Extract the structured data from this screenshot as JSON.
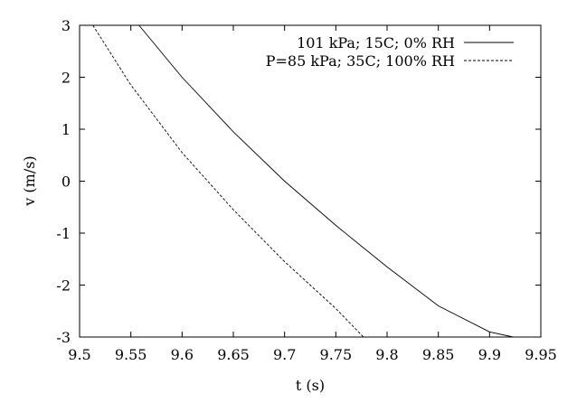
{
  "chart_data": {
    "type": "line",
    "title": "",
    "xlabel": "t (s)",
    "ylabel": "v (m/s)",
    "xlim": [
      9.5,
      9.95
    ],
    "ylim": [
      -3,
      3
    ],
    "xticks": [
      9.5,
      9.55,
      9.6,
      9.65,
      9.7,
      9.75,
      9.8,
      9.85,
      9.9,
      9.95
    ],
    "xtick_labels": [
      "9.5",
      "9.55",
      "9.6",
      "9.65",
      "9.7",
      "9.75",
      "9.8",
      "9.85",
      "9.9",
      "9.95"
    ],
    "yticks": [
      3,
      2,
      1,
      0,
      -1,
      -2,
      -3
    ],
    "ytick_labels": [
      "3",
      "2",
      "1",
      "0",
      "-1",
      "-2",
      "-3"
    ],
    "grid": false,
    "legend_position": "top-right",
    "series": [
      {
        "name": "101 kPa; 15C; 0% RH",
        "style": "solid",
        "color": "#000000",
        "x": [
          9.558,
          9.6,
          9.65,
          9.7,
          9.75,
          9.8,
          9.85,
          9.9,
          9.923
        ],
        "y": [
          3.0,
          2.0,
          0.95,
          0.0,
          -0.85,
          -1.65,
          -2.4,
          -2.9,
          -3.0
        ]
      },
      {
        "name": "P=85 kPa; 35C; 100% RH",
        "style": "dashed",
        "color": "#000000",
        "x": [
          9.513,
          9.55,
          9.6,
          9.65,
          9.7,
          9.75,
          9.777
        ],
        "y": [
          3.0,
          1.85,
          0.55,
          -0.55,
          -1.55,
          -2.45,
          -3.0
        ]
      }
    ]
  }
}
